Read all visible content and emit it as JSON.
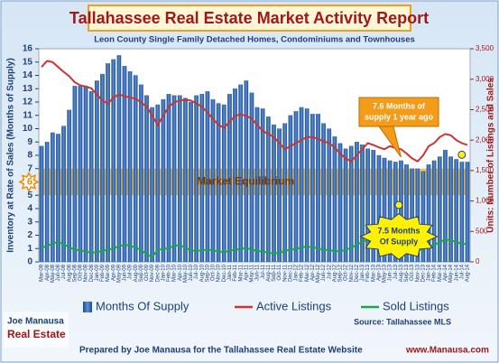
{
  "chart_data": {
    "type": "bar",
    "title": "Tallahassee Real Estate Market Activity Report",
    "subtitle": "Leon County Single Family Detached Homes, Condominiums and Townhouses",
    "y_label": "Inventory at Rate of Sales (Months of Supply)",
    "y2_label": "Units: Number of Listings and Sales",
    "categories": [
      "Mar-08",
      "Apr-08",
      "May-08",
      "Jun-08",
      "Jul-08",
      "Aug-08",
      "Sep-08",
      "Oct-08",
      "Nov-08",
      "Dec-08",
      "Jan-09",
      "Feb-09",
      "Mar-09",
      "Apr-09",
      "May-09",
      "Jun-09",
      "Jul-09",
      "Aug-09",
      "Sep-09",
      "Oct-09",
      "Nov-09",
      "Dec-09",
      "Jan-10",
      "Feb-10",
      "Mar-10",
      "Apr-10",
      "May-10",
      "Jun-10",
      "Jul-10",
      "Aug-10",
      "Sep-10",
      "Oct-10",
      "Nov-10",
      "Dec-10",
      "Jan-11",
      "Feb-11",
      "Mar-11",
      "Apr-11",
      "May-11",
      "Jun-11",
      "Jul-11",
      "Aug-11",
      "Sep-11",
      "Oct-11",
      "Nov-11",
      "Dec-11",
      "Jan-12",
      "Feb-12",
      "Mar-12",
      "Apr-12",
      "May-12",
      "Jun-12",
      "Jul-12",
      "Aug-12",
      "Sep-12",
      "Oct-12",
      "Nov-12",
      "Dec-12",
      "Jan-13",
      "Feb-13",
      "Mar-13",
      "Apr-13",
      "May-13",
      "Jun-13",
      "Jul-13",
      "Aug-13",
      "Sep-13",
      "Oct-13",
      "Nov-13",
      "Dec-13",
      "Jan-14",
      "Feb-14",
      "Mar-14",
      "Apr-14",
      "May-14",
      "Jun-14",
      "Jul-14",
      "Aug-14"
    ],
    "series": [
      {
        "name": "Months Of Supply",
        "type": "bar",
        "color": "#2d5fa8",
        "values": [
          8.7,
          9.0,
          9.7,
          9.6,
          10.2,
          11.4,
          13.2,
          13.2,
          13.2,
          12.8,
          13.6,
          14.1,
          14.9,
          15.2,
          15.5,
          14.7,
          14.3,
          14.0,
          13.3,
          12.5,
          11.6,
          11.8,
          12.2,
          12.6,
          12.5,
          12.5,
          12.3,
          12.0,
          12.5,
          12.6,
          12.8,
          12.2,
          11.9,
          11.8,
          12.6,
          13.0,
          13.3,
          13.6,
          12.7,
          11.6,
          11.5,
          10.9,
          10.3,
          10.0,
          10.4,
          11.0,
          11.3,
          11.6,
          11.5,
          11.1,
          11.1,
          10.4,
          10.0,
          9.4,
          8.9,
          8.5,
          8.7,
          9.0,
          8.8,
          8.5,
          8.4,
          8.0,
          7.8,
          7.6,
          7.5,
          7.6,
          7.3,
          7.0,
          7.0,
          6.8,
          7.3,
          7.6,
          7.9,
          8.4,
          7.9,
          7.7,
          7.5,
          7.5
        ]
      },
      {
        "name": "Active Listings",
        "type": "line",
        "axis": "y2",
        "color": "#cc3333",
        "values": [
          3200,
          3300,
          3280,
          3200,
          3120,
          3050,
          2950,
          2900,
          2880,
          2850,
          2750,
          2650,
          2600,
          2700,
          2750,
          2720,
          2700,
          2680,
          2620,
          2550,
          2400,
          2250,
          2400,
          2550,
          2620,
          2650,
          2660,
          2650,
          2600,
          2550,
          2450,
          2350,
          2250,
          2200,
          2300,
          2400,
          2420,
          2400,
          2350,
          2250,
          2150,
          2100,
          2050,
          1950,
          1850,
          1900,
          1950,
          2000,
          2050,
          2050,
          2020,
          1980,
          1950,
          1880,
          1780,
          1700,
          1650,
          1750,
          1850,
          1950,
          1920,
          1880,
          1850,
          1900,
          1870,
          1850,
          1780,
          1700,
          1650,
          1750,
          1900,
          1950,
          2050,
          2100,
          2080,
          2000,
          1950,
          1920
        ]
      },
      {
        "name": "Sold Listings",
        "type": "line",
        "axis": "y2",
        "color": "#1aa64a",
        "values": [
          230,
          260,
          300,
          330,
          290,
          240,
          200,
          190,
          170,
          150,
          160,
          180,
          200,
          220,
          260,
          280,
          270,
          230,
          200,
          120,
          80,
          200,
          210,
          230,
          260,
          280,
          230,
          190,
          180,
          190,
          200,
          190,
          170,
          160,
          180,
          200,
          210,
          230,
          200,
          180,
          170,
          150,
          140,
          150,
          180,
          200,
          210,
          240,
          250,
          240,
          220,
          200,
          190,
          180,
          170,
          200,
          230,
          280,
          330,
          360,
          340,
          300,
          280,
          250,
          230,
          200,
          180,
          170,
          190,
          210,
          250,
          280,
          320,
          370,
          350,
          330,
          290,
          300
        ]
      }
    ],
    "ylim": [
      0,
      16
    ],
    "yticks": [
      0,
      1,
      2,
      3,
      4,
      5,
      6,
      7,
      8,
      9,
      10,
      11,
      12,
      13,
      14,
      15,
      16
    ],
    "y2lim": [
      0,
      3500
    ],
    "y2ticks": [
      0,
      500,
      {
        "value": 1000,
        "label": "1,000"
      },
      {
        "value": 1500,
        "label": "1,500"
      },
      {
        "value": 2000,
        "label": "2,000"
      },
      {
        "value": 2500,
        "label": "2,500"
      },
      {
        "value": 3000,
        "label": "3,000"
      },
      {
        "value": 3500,
        "label": "3,500"
      }
    ],
    "equilibrium": {
      "label": "Market Equilibrium",
      "range": [
        5,
        7
      ]
    },
    "callout_year_ago": [
      "7.6 Months of",
      "supply 1 year ago"
    ],
    "callout_current": [
      "7.5 Months",
      "Of Supply"
    ],
    "source": "Source: Tallahassee MLS",
    "logo": [
      "Joe Manausa",
      "Real Estate"
    ],
    "footer": "Prepared by Joe Manausa for the Tallahassee Real Estate Website",
    "footer_url": "www.Manausa.com"
  }
}
